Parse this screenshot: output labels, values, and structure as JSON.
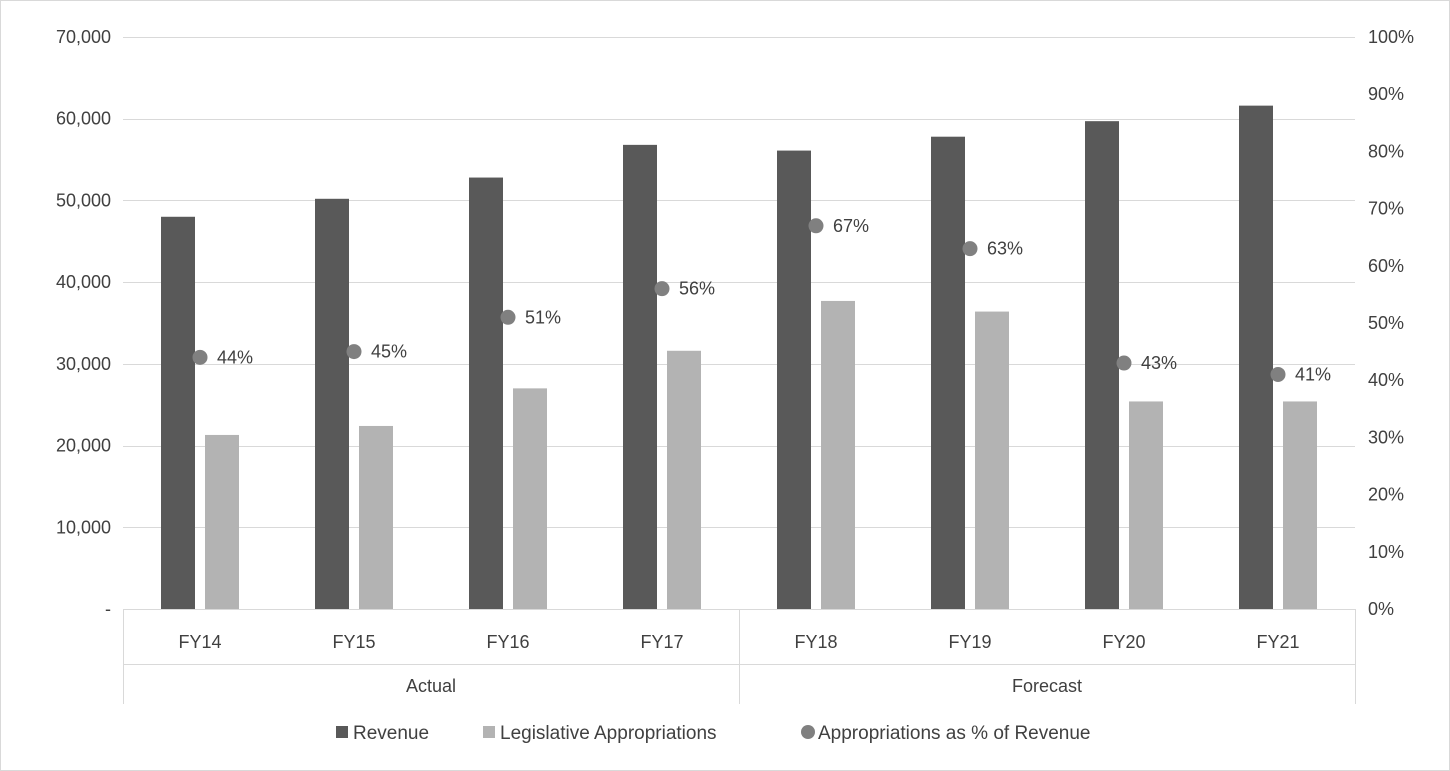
{
  "chart_data": {
    "type": "bar",
    "title": "",
    "categories": [
      "FY14",
      "FY15",
      "FY16",
      "FY17",
      "FY18",
      "FY19",
      "FY20",
      "FY21"
    ],
    "groups": [
      {
        "label": "Actual",
        "categories": [
          "FY14",
          "FY15",
          "FY16",
          "FY17"
        ]
      },
      {
        "label": "Forecast",
        "categories": [
          "FY18",
          "FY19",
          "FY20",
          "FY21"
        ]
      }
    ],
    "series": [
      {
        "name": "Revenue",
        "type": "bar",
        "axis": "left",
        "color": "#595959",
        "values": [
          48000,
          50200,
          52800,
          56800,
          56100,
          57800,
          59700,
          61600
        ]
      },
      {
        "name": "Legislative Appropriations",
        "type": "bar",
        "axis": "left",
        "color": "#b3b3b3",
        "values": [
          21300,
          22400,
          27000,
          31600,
          37700,
          36400,
          25400,
          25400
        ]
      },
      {
        "name": "Appropriations as % of Revenue",
        "type": "scatter",
        "axis": "right",
        "color": "#808080",
        "values": [
          0.44,
          0.45,
          0.51,
          0.56,
          0.67,
          0.63,
          0.43,
          0.41
        ],
        "labels": [
          "44%",
          "45%",
          "51%",
          "56%",
          "67%",
          "63%",
          "43%",
          "41%"
        ]
      }
    ],
    "y_left": {
      "ylim": [
        0,
        70000
      ],
      "ticks": [
        0,
        10000,
        20000,
        30000,
        40000,
        50000,
        60000,
        70000
      ],
      "tick_labels": [
        "-",
        "10,000",
        "20,000",
        "30,000",
        "40,000",
        "50,000",
        "60,000",
        "70,000"
      ]
    },
    "y_right": {
      "ylim": [
        0,
        1
      ],
      "ticks": [
        0,
        0.1,
        0.2,
        0.3,
        0.4,
        0.5,
        0.6,
        0.7,
        0.8,
        0.9,
        1.0
      ],
      "tick_labels": [
        "0%",
        "10%",
        "20%",
        "30%",
        "40%",
        "50%",
        "60%",
        "70%",
        "80%",
        "90%",
        "100%"
      ]
    },
    "grid": true,
    "legend": "bottom",
    "colors": {
      "revenue": "#595959",
      "appropriations": "#b3b3b3",
      "percent": "#808080"
    }
  }
}
